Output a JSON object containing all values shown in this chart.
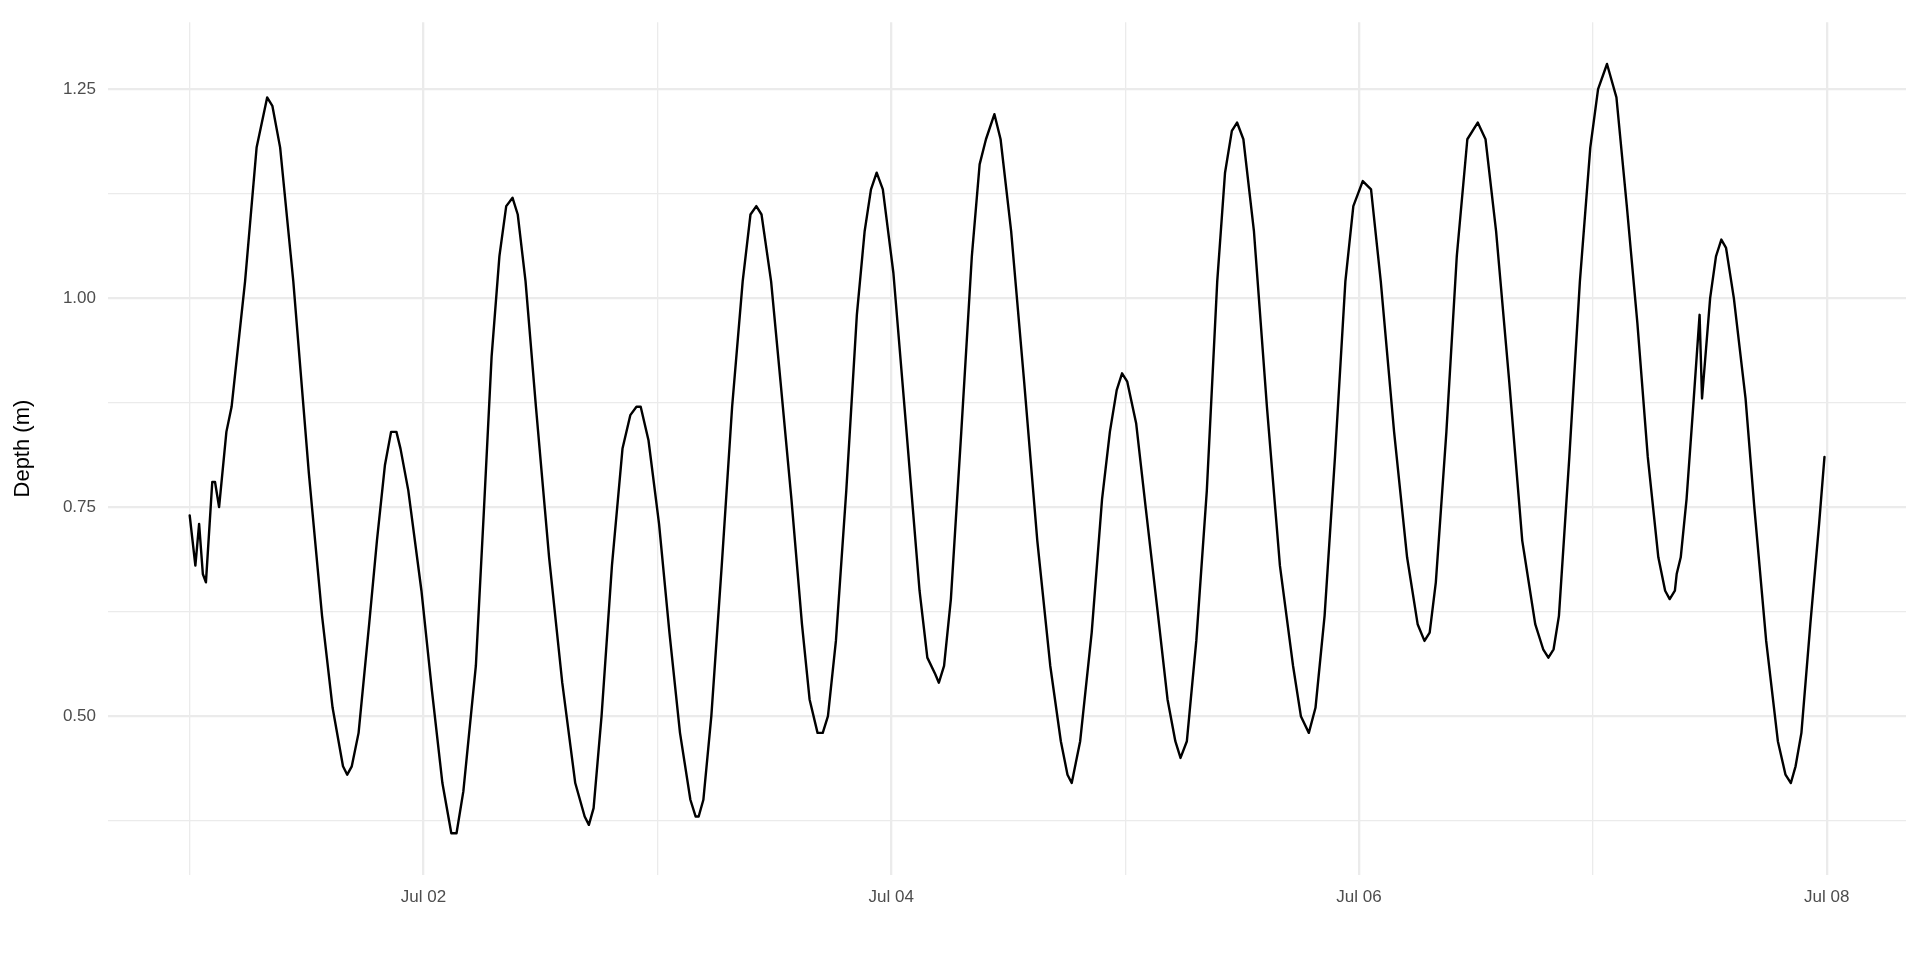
{
  "chart_data": {
    "type": "line",
    "ylabel": "Depth (m)",
    "color": "#000000",
    "grid": true,
    "x": [
      "--07-01T00:00",
      "--07-01T00:35",
      "--07-01T00:58",
      "--07-01T01:21",
      "--07-01T01:40",
      "--07-01T02:19",
      "--07-01T02:36",
      "--07-01T03:01",
      "--07-01T03:46",
      "--07-01T04:18",
      "--07-01T05:41",
      "--07-01T06:52",
      "--07-01T07:57",
      "--07-01T08:29",
      "--07-01T09:17",
      "--07-01T10:38",
      "--07-01T12:14",
      "--07-01T13:35",
      "--07-01T14:40",
      "--07-01T15:44",
      "--07-01T16:10",
      "--07-01T16:38",
      "--07-01T17:20",
      "--07-01T18:25",
      "--07-01T19:13",
      "--07-01T20:02",
      "--07-01T20:40",
      "--07-01T21:13",
      "--07-01T21:38",
      "--07-01T22:26",
      "--07-01T23:47",
      "--07-02T00:52",
      "--07-02T01:56",
      "--07-02T02:51",
      "--07-02T03:23",
      "--07-02T04:05",
      "--07-02T05:22",
      "--07-02T06:10",
      "--07-02T06:59",
      "--07-02T07:47",
      "--07-02T08:29",
      "--07-02T09:08",
      "--07-02T09:40",
      "--07-02T10:28",
      "--07-02T11:32",
      "--07-02T12:53",
      "--07-02T14:14",
      "--07-02T15:34",
      "--07-02T16:32",
      "--07-02T16:58",
      "--07-02T17:27",
      "--07-02T18:16",
      "--07-02T19:20",
      "--07-02T20:25",
      "--07-02T21:13",
      "--07-02T21:51",
      "--07-02T22:17",
      "--07-02T23:05",
      "--07-03T00:10",
      "--07-03T01:14",
      "--07-03T02:19",
      "--07-03T03:23",
      "--07-03T03:55",
      "--07-03T04:14",
      "--07-03T04:43",
      "--07-03T05:32",
      "--07-03T06:36",
      "--07-03T07:40",
      "--07-03T08:45",
      "--07-03T09:33",
      "--07-03T10:09",
      "--07-03T10:41",
      "--07-03T11:40",
      "--07-03T12:38",
      "--07-03T13:45",
      "--07-03T14:50",
      "--07-03T15:37",
      "--07-03T16:26",
      "--07-03T16:58",
      "--07-03T17:30",
      "--07-03T18:19",
      "--07-03T19:23",
      "--07-03T20:28",
      "--07-03T21:16",
      "--07-03T21:55",
      "--07-03T22:30",
      "--07-03T23:08",
      "--07-04T00:13",
      "--07-04T01:34",
      "--07-04T02:54",
      "--07-04T03:42",
      "--07-04T04:31",
      "--07-04T04:53",
      "--07-04T05:25",
      "--07-04T06:07",
      "--07-04T07:11",
      "--07-04T08:16",
      "--07-04T09:04",
      "--07-04T09:43",
      "--07-04T10:35",
      "--07-04T11:13",
      "--07-04T12:18",
      "--07-04T13:38",
      "--07-04T14:59",
      "--07-04T16:19",
      "--07-04T17:24",
      "--07-04T18:05",
      "--07-04T18:31",
      "--07-04T19:23",
      "--07-04T20:34",
      "--07-04T21:38",
      "--07-04T22:26",
      "--07-04T23:08",
      "--07-04T23:41",
      "--07-05T00:13",
      "--07-05T01:08",
      "--07-05T02:12",
      "--07-05T03:17",
      "--07-05T04:21",
      "--07-05T05:09",
      "--07-05T05:41",
      "--07-05T06:20",
      "--07-05T07:18",
      "--07-05T08:23",
      "--07-05T09:27",
      "--07-05T10:15",
      "--07-05T10:57",
      "--07-05T11:29",
      "--07-05T12:08",
      "--07-05T13:13",
      "--07-05T14:33",
      "--07-05T15:53",
      "--07-05T17:14",
      "--07-05T18:02",
      "--07-05T18:51",
      "--07-05T19:32",
      "--07-05T20:28",
      "--07-05T21:32",
      "--07-05T22:36",
      "--07-05T23:25",
      "--07-06T00:23",
      "--07-06T01:14",
      "--07-06T02:14",
      "--07-06T03:36",
      "--07-06T04:56",
      "--07-06T06:01",
      "--07-06T06:43",
      "--07-06T07:15",
      "--07-06T07:53",
      "--07-06T08:58",
      "--07-06T10:02",
      "--07-06T11:07",
      "--07-06T12:11",
      "--07-06T12:59",
      "--07-06T14:04",
      "--07-06T15:25",
      "--07-06T16:45",
      "--07-06T18:05",
      "--07-06T18:54",
      "--07-06T19:26",
      "--07-06T19:58",
      "--07-06T20:31",
      "--07-06T21:35",
      "--07-06T22:40",
      "--07-06T23:44",
      "--07-07T00:32",
      "--07-07T01:27",
      "--07-07T02:25",
      "--07-07T03:29",
      "--07-07T04:34",
      "--07-07T05:38",
      "--07-07T06:43",
      "--07-07T07:25",
      "--07-07T07:53",
      "--07-07T08:25",
      "--07-07T08:36",
      "--07-07T09:01",
      "--07-07T09:37",
      "--07-07T10:14",
      "--07-07T10:57",
      "--07-07T11:12",
      "--07-07T11:37",
      "--07-07T12:02",
      "--07-07T12:38",
      "--07-07T13:11",
      "--07-07T13:40",
      "--07-07T14:28",
      "--07-07T15:40",
      "--07-07T16:34",
      "--07-07T17:47",
      "--07-07T18:59",
      "--07-07T19:46",
      "--07-07T20:19",
      "--07-07T20:48",
      "--07-07T21:24",
      "--07-07T22:19",
      "--07-07T23:13",
      "--07-07T23:46"
    ],
    "values": [
      0.74,
      0.68,
      0.73,
      0.67,
      0.66,
      0.78,
      0.78,
      0.75,
      0.84,
      0.87,
      1.02,
      1.18,
      1.24,
      1.23,
      1.18,
      1.02,
      0.79,
      0.62,
      0.51,
      0.44,
      0.43,
      0.44,
      0.48,
      0.61,
      0.71,
      0.8,
      0.84,
      0.84,
      0.82,
      0.77,
      0.65,
      0.53,
      0.42,
      0.36,
      0.36,
      0.41,
      0.56,
      0.74,
      0.93,
      1.05,
      1.11,
      1.12,
      1.1,
      1.02,
      0.87,
      0.69,
      0.54,
      0.42,
      0.38,
      0.37,
      0.39,
      0.5,
      0.68,
      0.82,
      0.86,
      0.87,
      0.87,
      0.83,
      0.73,
      0.6,
      0.48,
      0.4,
      0.38,
      0.38,
      0.4,
      0.5,
      0.68,
      0.87,
      1.02,
      1.1,
      1.11,
      1.1,
      1.02,
      0.9,
      0.76,
      0.61,
      0.52,
      0.48,
      0.48,
      0.5,
      0.59,
      0.77,
      0.98,
      1.08,
      1.13,
      1.15,
      1.13,
      1.03,
      0.84,
      0.65,
      0.57,
      0.55,
      0.54,
      0.56,
      0.64,
      0.84,
      1.05,
      1.16,
      1.19,
      1.22,
      1.19,
      1.08,
      0.9,
      0.71,
      0.56,
      0.47,
      0.43,
      0.42,
      0.47,
      0.6,
      0.76,
      0.84,
      0.89,
      0.91,
      0.9,
      0.85,
      0.74,
      0.63,
      0.52,
      0.47,
      0.45,
      0.47,
      0.59,
      0.77,
      1.02,
      1.15,
      1.2,
      1.21,
      1.19,
      1.08,
      0.87,
      0.68,
      0.56,
      0.5,
      0.48,
      0.51,
      0.62,
      0.81,
      1.02,
      1.11,
      1.14,
      1.13,
      1.02,
      0.84,
      0.69,
      0.61,
      0.59,
      0.6,
      0.66,
      0.84,
      1.05,
      1.19,
      1.21,
      1.19,
      1.08,
      0.9,
      0.71,
      0.61,
      0.58,
      0.57,
      0.58,
      0.62,
      0.81,
      1.02,
      1.18,
      1.25,
      1.28,
      1.24,
      1.11,
      0.97,
      0.81,
      0.69,
      0.65,
      0.64,
      0.65,
      0.67,
      0.69,
      0.76,
      0.86,
      0.98,
      0.88,
      0.94,
      1.0,
      1.05,
      1.07,
      1.06,
      1.0,
      0.88,
      0.75,
      0.59,
      0.47,
      0.43,
      0.42,
      0.44,
      0.48,
      0.61,
      0.73,
      0.81
    ],
    "xlim": [
      "--06-30T15:37",
      "--07-08T08:08"
    ],
    "xticks": [
      {
        "value": "--07-01",
        "label": null
      },
      {
        "value": "--07-02",
        "label": "Jul 02"
      },
      {
        "value": "--07-03",
        "label": null
      },
      {
        "value": "--07-04",
        "label": "Jul 04"
      },
      {
        "value": "--07-05",
        "label": null
      },
      {
        "value": "--07-06",
        "label": "Jul 06"
      },
      {
        "value": "--07-07",
        "label": null
      },
      {
        "value": "--07-08",
        "label": "Jul 08"
      }
    ],
    "ylim": [
      0.31,
      1.33
    ],
    "yticks": [
      {
        "value": 0.375,
        "label": null
      },
      {
        "value": 0.5,
        "label": "0.50"
      },
      {
        "value": 0.625,
        "label": null
      },
      {
        "value": 0.75,
        "label": "0.75"
      },
      {
        "value": 0.875,
        "label": null
      },
      {
        "value": 1,
        "label": "1.00"
      },
      {
        "value": 1.125,
        "label": null
      },
      {
        "value": 1.25,
        "label": "1.25"
      }
    ]
  }
}
